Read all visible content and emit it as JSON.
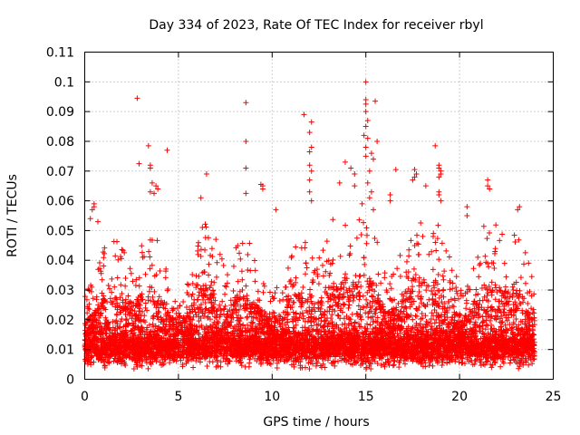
{
  "chart_data": {
    "type": "scatter",
    "title": "Day 334 of 2023, Rate Of TEC Index for receiver rbyl",
    "xlabel": "GPS time / hours",
    "ylabel": "ROTI / TECUs",
    "xlim": [
      0,
      25
    ],
    "ylim": [
      0,
      0.11
    ],
    "x_ticks": [
      0,
      5,
      10,
      15,
      20,
      25
    ],
    "x_tick_labels": [
      "0",
      "5",
      "10",
      "15",
      "20",
      "25"
    ],
    "y_ticks": [
      0,
      0.01,
      0.02,
      0.03,
      0.04,
      0.05,
      0.06,
      0.07,
      0.08,
      0.09,
      0.1,
      0.11
    ],
    "y_tick_labels": [
      "0",
      "0.01",
      "0.02",
      "0.03",
      "0.04",
      "0.05",
      "0.06",
      "0.07",
      "0.08",
      "0.09",
      "0.1",
      "0.11"
    ],
    "grid": true,
    "marker": "+",
    "color": "#ff0000",
    "x_data_range": [
      0,
      24
    ],
    "series": [
      {
        "name": "ROTI",
        "note": "dense cloud of several thousand samples; bulk between 0.005 and 0.02 TECU/s, scattered spikes up to ~0.1",
        "points": [
          [
            2.8,
            0.0945
          ],
          [
            8.6,
            0.093
          ],
          [
            8.6,
            0.08
          ],
          [
            8.6,
            0.071
          ],
          [
            8.6,
            0.0625
          ],
          [
            15.0,
            0.1
          ],
          [
            15.0,
            0.094
          ],
          [
            15.0,
            0.0925
          ],
          [
            15.5,
            0.0935
          ],
          [
            15.0,
            0.09
          ],
          [
            15.1,
            0.087
          ],
          [
            15.0,
            0.085
          ],
          [
            14.9,
            0.082
          ],
          [
            15.1,
            0.081
          ],
          [
            15.6,
            0.08
          ],
          [
            15.0,
            0.078
          ],
          [
            15.3,
            0.076
          ],
          [
            15.0,
            0.075
          ],
          [
            15.4,
            0.074
          ],
          [
            15.2,
            0.07
          ],
          [
            15.1,
            0.066
          ],
          [
            15.3,
            0.063
          ],
          [
            15.2,
            0.061
          ],
          [
            14.8,
            0.059
          ],
          [
            15.4,
            0.057
          ],
          [
            11.7,
            0.089
          ],
          [
            12.1,
            0.0865
          ],
          [
            12.0,
            0.083
          ],
          [
            12.1,
            0.078
          ],
          [
            12.0,
            0.0765
          ],
          [
            12.0,
            0.072
          ],
          [
            12.1,
            0.07
          ],
          [
            12.0,
            0.067
          ],
          [
            12.0,
            0.063
          ],
          [
            12.1,
            0.06
          ],
          [
            3.4,
            0.0785
          ],
          [
            4.4,
            0.077
          ],
          [
            2.9,
            0.0725
          ],
          [
            3.5,
            0.072
          ],
          [
            3.5,
            0.071
          ],
          [
            3.6,
            0.066
          ],
          [
            3.8,
            0.065
          ],
          [
            3.9,
            0.064
          ],
          [
            3.5,
            0.063
          ],
          [
            3.7,
            0.0625
          ],
          [
            6.5,
            0.069
          ],
          [
            9.4,
            0.0655
          ],
          [
            9.5,
            0.065
          ],
          [
            9.5,
            0.064
          ],
          [
            6.2,
            0.061
          ],
          [
            18.7,
            0.0785
          ],
          [
            17.6,
            0.0705
          ],
          [
            17.7,
            0.069
          ],
          [
            18.9,
            0.072
          ],
          [
            18.9,
            0.071
          ],
          [
            19.0,
            0.07
          ],
          [
            19.0,
            0.069
          ],
          [
            18.9,
            0.068
          ],
          [
            17.6,
            0.068
          ],
          [
            17.5,
            0.067
          ],
          [
            18.2,
            0.065
          ],
          [
            18.9,
            0.063
          ],
          [
            18.9,
            0.062
          ],
          [
            19.0,
            0.06
          ],
          [
            16.6,
            0.0705
          ],
          [
            21.5,
            0.067
          ],
          [
            21.5,
            0.065
          ],
          [
            21.6,
            0.064
          ],
          [
            23.2,
            0.058
          ],
          [
            23.1,
            0.057
          ],
          [
            0.5,
            0.059
          ],
          [
            0.5,
            0.058
          ],
          [
            0.4,
            0.057
          ],
          [
            0.3,
            0.054
          ],
          [
            0.7,
            0.053
          ],
          [
            13.9,
            0.073
          ],
          [
            14.2,
            0.071
          ],
          [
            14.4,
            0.069
          ],
          [
            13.6,
            0.066
          ],
          [
            14.4,
            0.065
          ],
          [
            16.3,
            0.062
          ],
          [
            16.3,
            0.06
          ],
          [
            20.4,
            0.058
          ],
          [
            20.4,
            0.055
          ],
          [
            10.2,
            0.057
          ]
        ]
      }
    ]
  }
}
